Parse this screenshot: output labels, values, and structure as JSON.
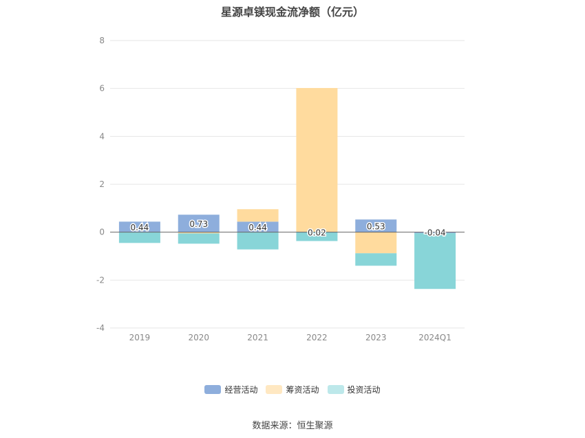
{
  "chart_data": {
    "type": "bar",
    "stacked": true,
    "title": "星源卓镁现金流净额（亿元）",
    "source": "数据来源：恒生聚源",
    "categories": [
      "2019",
      "2020",
      "2021",
      "2022",
      "2023",
      "2024Q1"
    ],
    "ylim": [
      -4,
      8
    ],
    "yticks": [
      -4,
      -2,
      0,
      2,
      4,
      6,
      8
    ],
    "grid": true,
    "legend_position": "bottom",
    "series": [
      {
        "name": "经营活动",
        "color": "#8eaedc",
        "values": [
          0.44,
          0.73,
          0.44,
          0.02,
          0.53,
          -0.04
        ]
      },
      {
        "name": "筹资活动",
        "color": "#ffdb9e",
        "values": [
          0.0,
          -0.05,
          0.52,
          6.0,
          -0.88,
          0.0
        ]
      },
      {
        "name": "投资活动",
        "color": "#88d5d8",
        "values": [
          -0.45,
          -0.43,
          -0.72,
          -0.37,
          -0.52,
          -2.33
        ]
      }
    ],
    "data_labels": [
      "0.44",
      "0.73",
      "0.44",
      "0.02",
      "0.53",
      "-0.04"
    ]
  }
}
